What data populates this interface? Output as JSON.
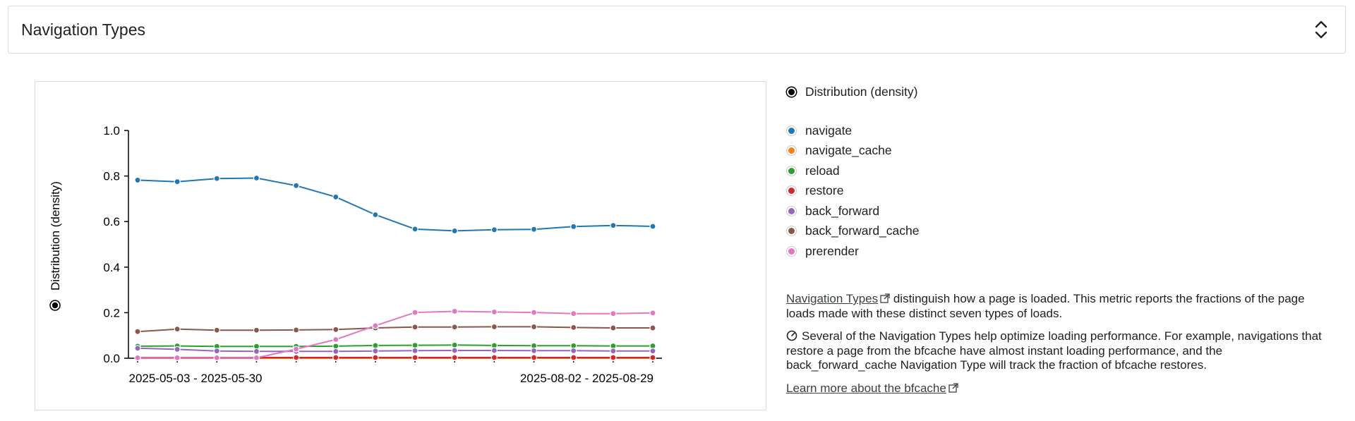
{
  "header": {
    "title": "Navigation Types"
  },
  "legend": {
    "density_label": "Distribution (density)",
    "items": [
      {
        "label": "navigate",
        "color": "#1f77b4"
      },
      {
        "label": "navigate_cache",
        "color": "#ff7f0e"
      },
      {
        "label": "reload",
        "color": "#2ca02c"
      },
      {
        "label": "restore",
        "color": "#d62728"
      },
      {
        "label": "back_forward",
        "color": "#9467bd"
      },
      {
        "label": "back_forward_cache",
        "color": "#8c564b"
      },
      {
        "label": "prerender",
        "color": "#e377c2"
      }
    ]
  },
  "description": {
    "link_label": "Navigation Types",
    "paragraph1_rest": "distinguish how a page is loaded. This metric reports the fractions of the page loads made with these distinct seven types of loads.",
    "paragraph2": "Several of the Navigation Types help optimize loading performance. For example, navigations that restore a page from the bfcache have almost instant loading performance, and the back_forward_cache Navigation Type will track the fraction of bfcache restores.",
    "learn_more_label": "Learn more about the bfcache"
  },
  "chart_data": {
    "type": "line",
    "ylabel": "Distribution (density)",
    "ylim": [
      0,
      1.0
    ],
    "yticks": [
      "0.0",
      "0.2",
      "0.4",
      "0.6",
      "0.8",
      "1.0"
    ],
    "x_tick_labels": [
      "2025-05-03 - 2025-05-30",
      "2025-08-02 - 2025-08-29"
    ],
    "n_points": 14,
    "series": [
      {
        "name": "navigate",
        "color": "#1f77b4",
        "values": [
          0.782,
          0.775,
          0.789,
          0.791,
          0.758,
          0.708,
          0.63,
          0.567,
          0.559,
          0.564,
          0.566,
          0.578,
          0.583,
          0.579
        ]
      },
      {
        "name": "navigate_cache",
        "color": "#ff7f0e",
        "values": [
          0.001,
          0.001,
          0.001,
          0.001,
          0.001,
          0.001,
          0.001,
          0.001,
          0.001,
          0.001,
          0.001,
          0.001,
          0.001,
          0.001
        ]
      },
      {
        "name": "reload",
        "color": "#2ca02c",
        "values": [
          0.053,
          0.054,
          0.052,
          0.052,
          0.052,
          0.053,
          0.056,
          0.057,
          0.058,
          0.056,
          0.055,
          0.055,
          0.054,
          0.054
        ]
      },
      {
        "name": "restore",
        "color": "#d62728",
        "values": [
          0.003,
          0.003,
          0.003,
          0.003,
          0.003,
          0.003,
          0.003,
          0.003,
          0.003,
          0.003,
          0.003,
          0.003,
          0.003,
          0.003
        ]
      },
      {
        "name": "back_forward",
        "color": "#9467bd",
        "values": [
          0.044,
          0.039,
          0.032,
          0.03,
          0.03,
          0.03,
          0.032,
          0.033,
          0.034,
          0.034,
          0.033,
          0.033,
          0.032,
          0.032
        ]
      },
      {
        "name": "back_forward_cache",
        "color": "#8c564b",
        "values": [
          0.117,
          0.128,
          0.123,
          0.123,
          0.124,
          0.126,
          0.133,
          0.137,
          0.137,
          0.138,
          0.138,
          0.135,
          0.133,
          0.133
        ]
      },
      {
        "name": "prerender",
        "color": "#e377c2",
        "values": [
          0.002,
          0.002,
          0.002,
          0.002,
          0.04,
          0.082,
          0.143,
          0.201,
          0.206,
          0.203,
          0.201,
          0.196,
          0.196,
          0.199
        ]
      }
    ]
  }
}
